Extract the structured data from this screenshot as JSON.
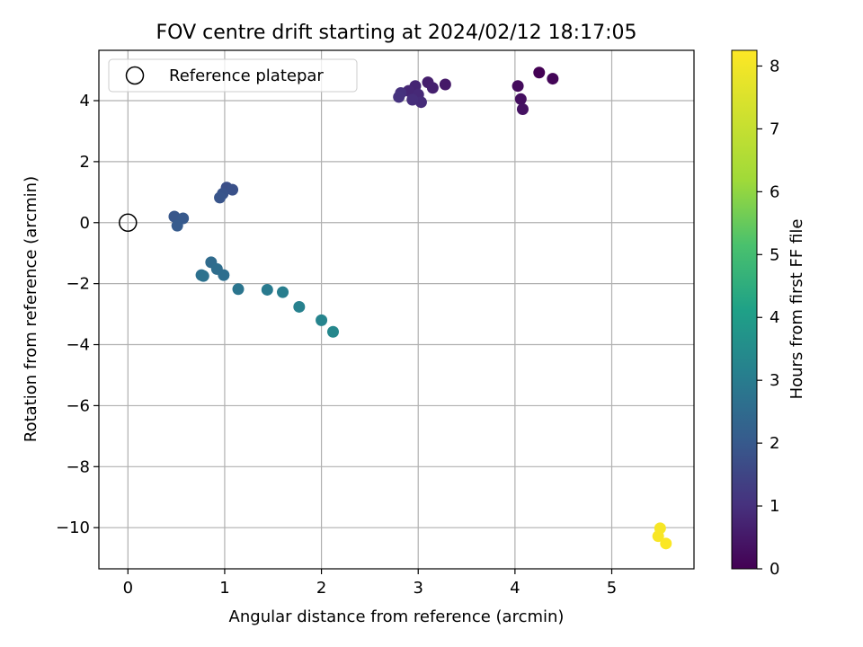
{
  "chart_data": {
    "type": "scatter",
    "title": "FOV centre drift starting at 2024/02/12 18:17:05",
    "xlabel": "Angular distance from reference (arcmin)",
    "ylabel": "Rotation from reference (arcmin)",
    "xlim": [
      -0.3,
      5.85
    ],
    "ylim": [
      -11.35,
      5.65
    ],
    "xticks": [
      0,
      1,
      2,
      3,
      4,
      5
    ],
    "yticks": [
      -10,
      -8,
      -6,
      -4,
      -2,
      0,
      2,
      4
    ],
    "grid": true,
    "legend": {
      "placement": "top-left",
      "entries": [
        "Reference platepar"
      ]
    },
    "reference_point": {
      "x": 0,
      "y": 0
    },
    "colorbar": {
      "label": "Hours from first FF file",
      "range": [
        0,
        8.25
      ],
      "ticks": [
        0,
        1,
        2,
        3,
        4,
        5,
        6,
        7,
        8
      ],
      "colormap": "viridis"
    },
    "points": [
      {
        "x": 4.25,
        "y": 4.92,
        "h": 0.0
      },
      {
        "x": 4.39,
        "y": 4.72,
        "h": 0.1
      },
      {
        "x": 4.03,
        "y": 4.48,
        "h": 0.2
      },
      {
        "x": 4.06,
        "y": 4.05,
        "h": 0.3
      },
      {
        "x": 4.08,
        "y": 3.72,
        "h": 0.35
      },
      {
        "x": 3.28,
        "y": 4.53,
        "h": 0.5
      },
      {
        "x": 3.1,
        "y": 4.6,
        "h": 0.6
      },
      {
        "x": 3.15,
        "y": 4.42,
        "h": 0.65
      },
      {
        "x": 2.97,
        "y": 4.48,
        "h": 0.75
      },
      {
        "x": 2.9,
        "y": 4.32,
        "h": 0.8
      },
      {
        "x": 3.0,
        "y": 4.2,
        "h": 0.85
      },
      {
        "x": 3.03,
        "y": 3.95,
        "h": 0.9
      },
      {
        "x": 2.94,
        "y": 4.03,
        "h": 0.95
      },
      {
        "x": 2.82,
        "y": 4.25,
        "h": 1.0
      },
      {
        "x": 2.8,
        "y": 4.12,
        "h": 1.05
      },
      {
        "x": 1.02,
        "y": 1.15,
        "h": 1.75
      },
      {
        "x": 1.08,
        "y": 1.08,
        "h": 1.8
      },
      {
        "x": 0.98,
        "y": 0.95,
        "h": 1.85
      },
      {
        "x": 0.95,
        "y": 0.82,
        "h": 1.9
      },
      {
        "x": 0.48,
        "y": 0.2,
        "h": 1.95
      },
      {
        "x": 0.57,
        "y": 0.14,
        "h": 2.0
      },
      {
        "x": 0.51,
        "y": -0.1,
        "h": 2.05
      },
      {
        "x": 0.86,
        "y": -1.3,
        "h": 2.5
      },
      {
        "x": 0.92,
        "y": -1.52,
        "h": 2.55
      },
      {
        "x": 0.99,
        "y": -1.72,
        "h": 2.6
      },
      {
        "x": 0.76,
        "y": -1.72,
        "h": 2.65
      },
      {
        "x": 0.78,
        "y": -1.75,
        "h": 2.7
      },
      {
        "x": 1.14,
        "y": -2.18,
        "h": 2.8
      },
      {
        "x": 1.44,
        "y": -2.2,
        "h": 2.95
      },
      {
        "x": 1.6,
        "y": -2.28,
        "h": 3.05
      },
      {
        "x": 1.77,
        "y": -2.76,
        "h": 3.15
      },
      {
        "x": 2.0,
        "y": -3.2,
        "h": 3.25
      },
      {
        "x": 2.12,
        "y": -3.58,
        "h": 3.35
      },
      {
        "x": 5.5,
        "y": -10.02,
        "h": 8.1
      },
      {
        "x": 5.48,
        "y": -10.28,
        "h": 8.15
      },
      {
        "x": 5.56,
        "y": -10.52,
        "h": 8.2
      }
    ]
  }
}
